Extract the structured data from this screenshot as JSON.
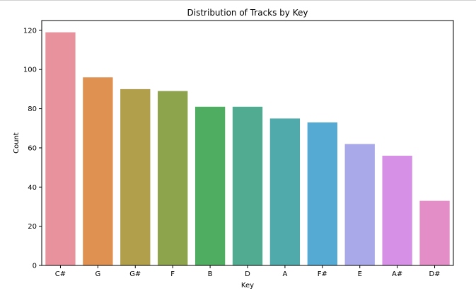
{
  "chart_data": {
    "type": "bar",
    "title": "Distribution of Tracks by Key",
    "xlabel": "Key",
    "ylabel": "Count",
    "categories": [
      "C#",
      "G",
      "G#",
      "F",
      "B",
      "D",
      "A",
      "F#",
      "E",
      "A#",
      "D#"
    ],
    "values": [
      119,
      96,
      90,
      89,
      81,
      81,
      75,
      73,
      62,
      56,
      33
    ],
    "colors": [
      "#e8929d",
      "#de9150",
      "#b19f4c",
      "#8ea44c",
      "#4ead60",
      "#50ab91",
      "#50a9ab",
      "#54aad2",
      "#a9a9ea",
      "#d691e6",
      "#e48ec7"
    ],
    "ylim": [
      0,
      125
    ],
    "yticks": [
      0,
      20,
      40,
      60,
      80,
      100,
      120
    ],
    "grid": false,
    "legend": "none"
  }
}
